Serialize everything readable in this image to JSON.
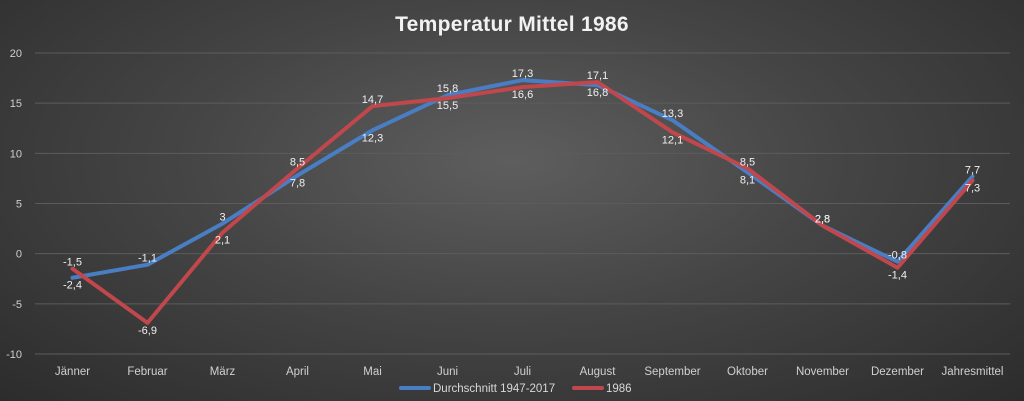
{
  "chart_data": {
    "type": "line",
    "title": "Temperatur Mittel 1986",
    "xlabel": "",
    "ylabel": "",
    "categories": [
      "Jänner",
      "Februar",
      "März",
      "April",
      "Mai",
      "Juni",
      "Juli",
      "August",
      "September",
      "Oktober",
      "November",
      "Dezember",
      "Jahresmittel"
    ],
    "ylim": [
      -10,
      20
    ],
    "yticks": [
      -10,
      -5,
      0,
      5,
      10,
      15,
      20
    ],
    "grid": true,
    "legend_position": "bottom",
    "series": [
      {
        "name": "Durchschnitt 1947-2017",
        "color": "#4a7ec4",
        "values": [
          -2.4,
          -1.1,
          3.0,
          7.8,
          12.3,
          15.8,
          17.3,
          16.8,
          13.3,
          8.1,
          2.8,
          -0.8,
          7.7
        ],
        "labels": [
          "-2,4",
          "-1,1",
          "3",
          "7,8",
          "12,3",
          "15,8",
          "17,3",
          "16,8",
          "13,3",
          "8,1",
          "2,8",
          "-0,8",
          "7,7"
        ]
      },
      {
        "name": "1986",
        "color": "#c0474c",
        "values": [
          -1.5,
          -6.9,
          2.1,
          8.5,
          14.7,
          15.5,
          16.6,
          17.1,
          12.1,
          8.5,
          2.8,
          -1.4,
          7.3
        ],
        "labels": [
          "-1,5",
          "-6,9",
          "2,1",
          "8,5",
          "14,7",
          "15,5",
          "16,6",
          "17,1",
          "12,1",
          "8,5",
          "2,8",
          "-1,4",
          "7,3"
        ]
      }
    ]
  }
}
